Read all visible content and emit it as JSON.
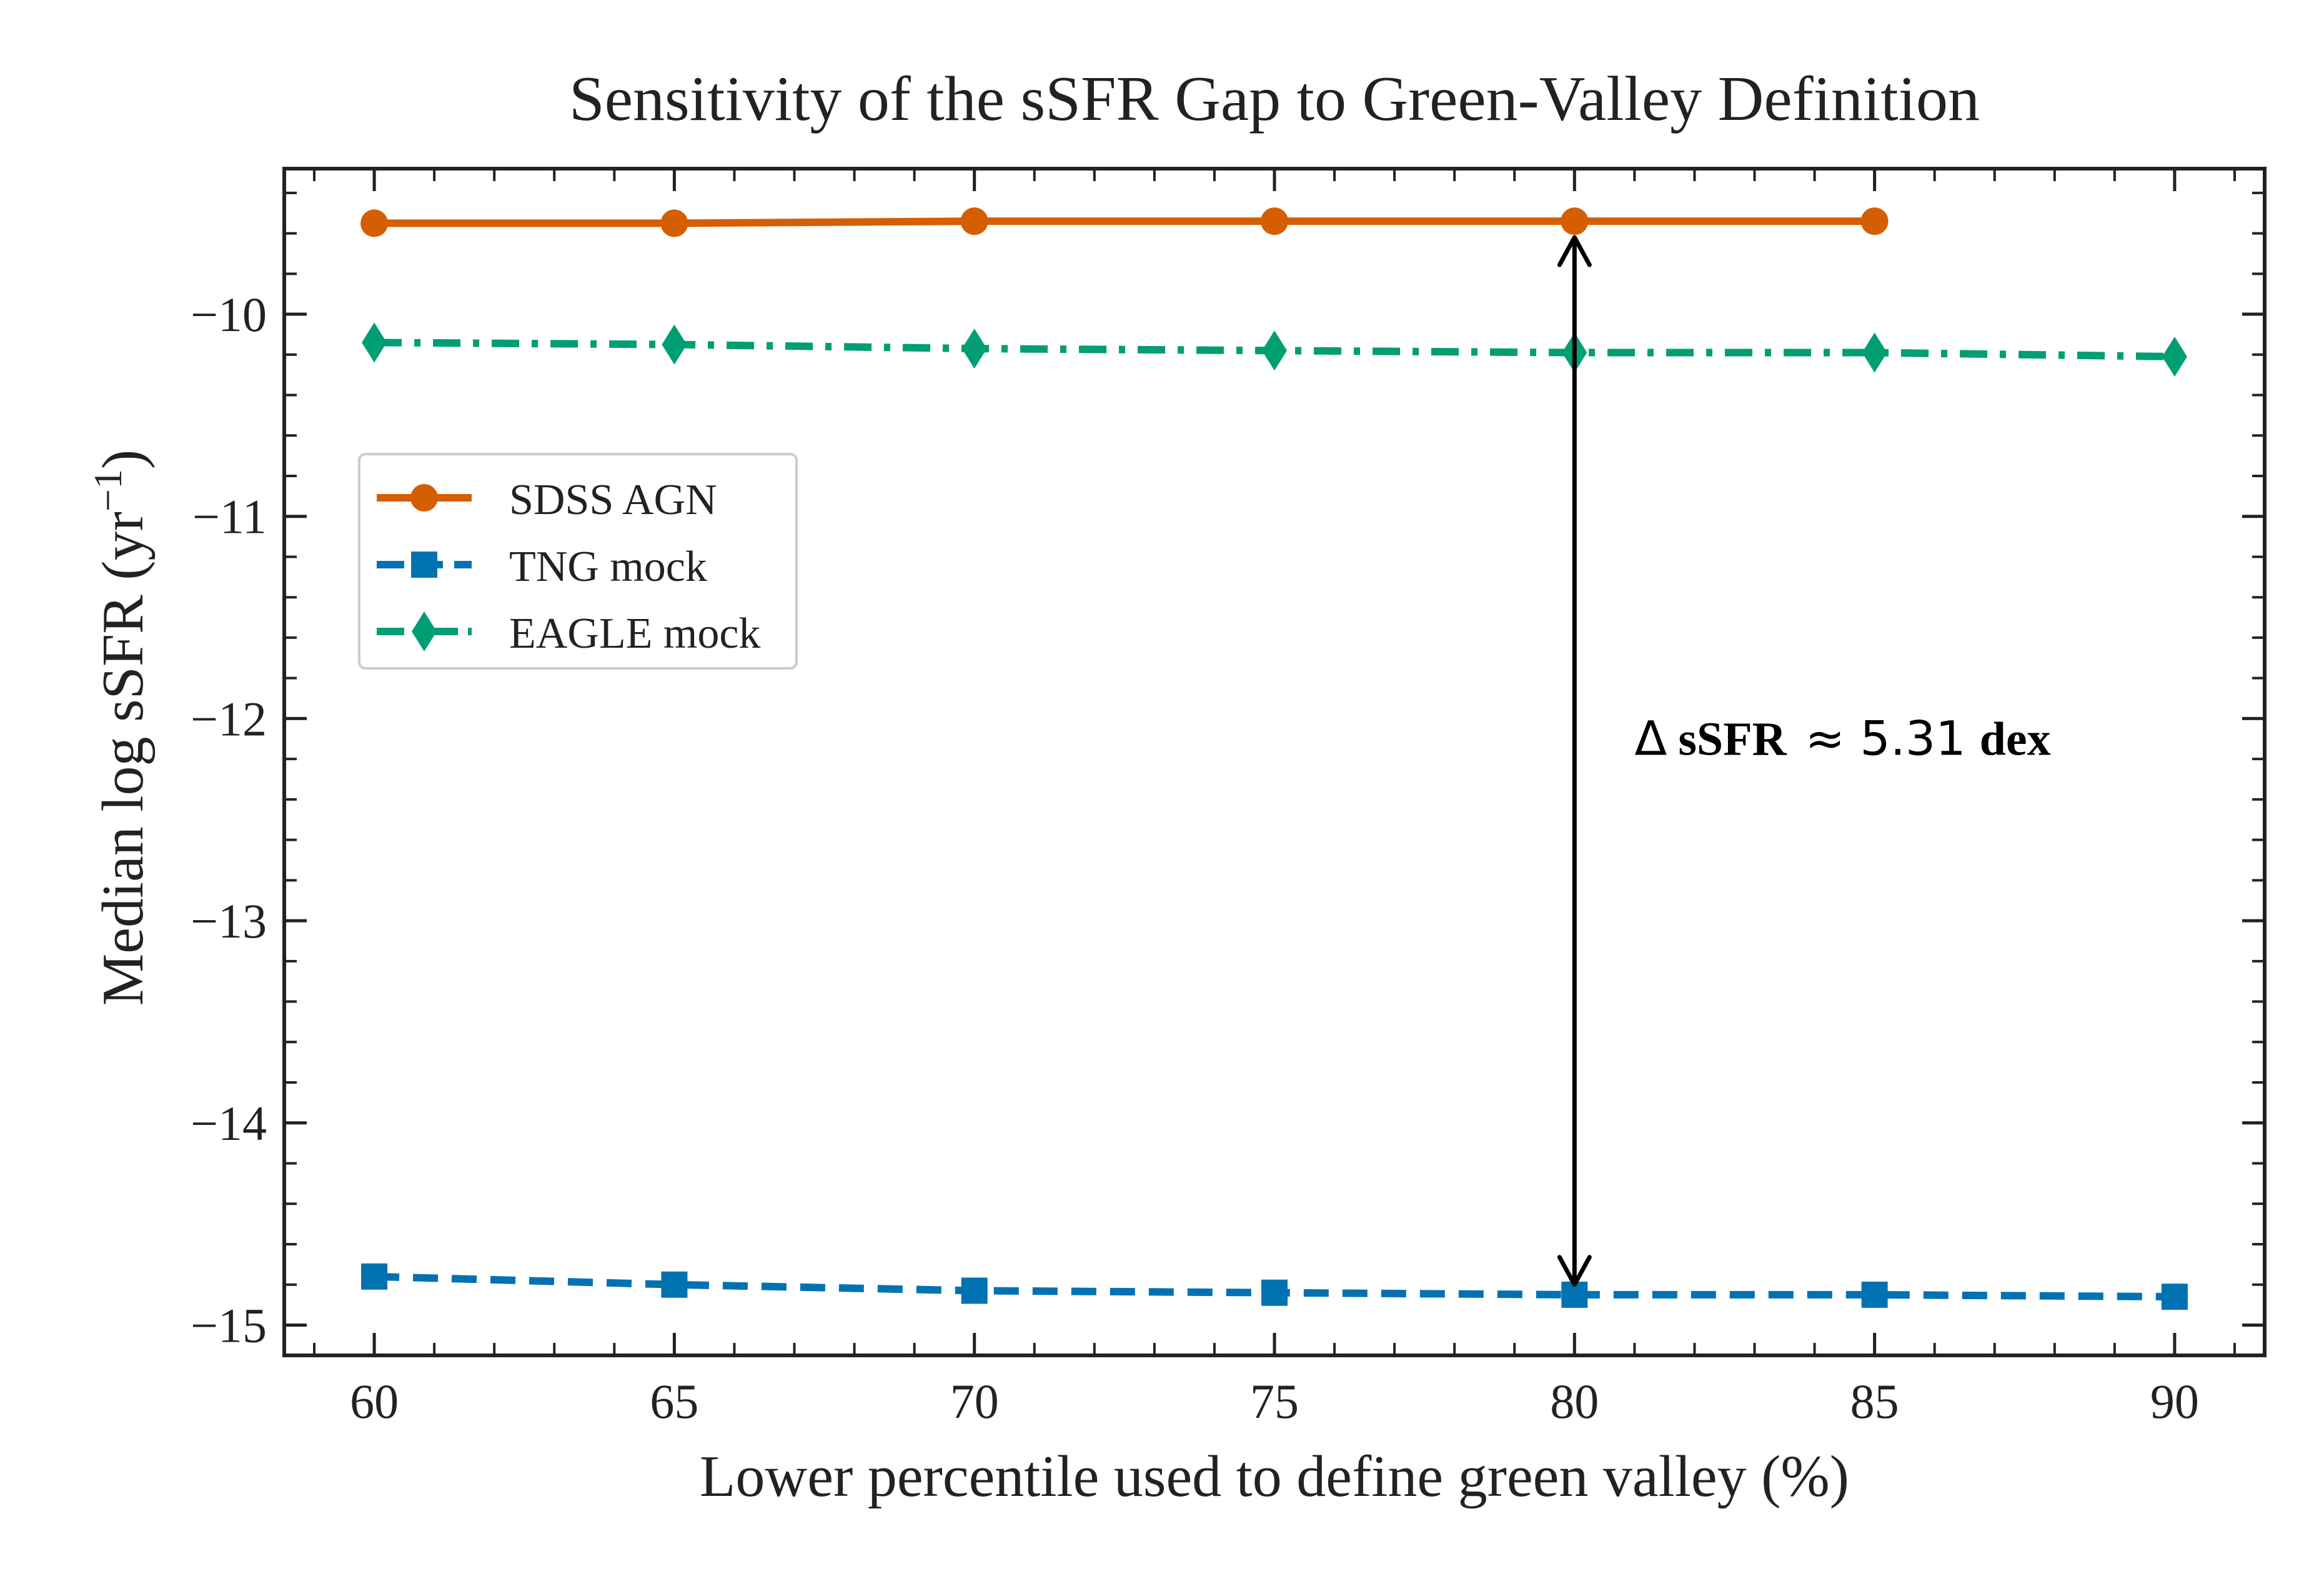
{
  "chart_data": {
    "type": "line",
    "title": "Sensitivity of the sSFR Gap to Green-Valley Definition",
    "xlabel": "Lower percentile used to define green valley (%)",
    "ylabel_main": "Median log  sSFR (yr",
    "ylabel_sup": "−1",
    "ylabel_close": ")",
    "xlim": [
      58.5,
      91.5
    ],
    "ylim": [
      -15.15,
      -9.28
    ],
    "xticks": [
      60,
      65,
      70,
      75,
      80,
      85,
      90
    ],
    "yticks": [
      -10,
      -11,
      -12,
      -13,
      -14,
      -15
    ],
    "xtick_labels": [
      "60",
      "65",
      "70",
      "75",
      "80",
      "85",
      "90"
    ],
    "ytick_labels": [
      "−10",
      "−11",
      "−12",
      "−13",
      "−14",
      "−15"
    ],
    "grid": false,
    "legend_position": "upper-left",
    "series": [
      {
        "name": "SDSS AGN",
        "color": "#d55e00",
        "marker": "circle",
        "linestyle": "solid",
        "x": [
          60,
          65,
          70,
          75,
          80,
          85
        ],
        "y": [
          -9.55,
          -9.55,
          -9.54,
          -9.54,
          -9.54,
          -9.54
        ]
      },
      {
        "name": "TNG mock",
        "color": "#0072b2",
        "marker": "square",
        "linestyle": "dashed",
        "x": [
          60,
          65,
          70,
          75,
          80,
          85,
          90
        ],
        "y": [
          -14.76,
          -14.8,
          -14.83,
          -14.84,
          -14.85,
          -14.85,
          -14.86
        ]
      },
      {
        "name": "EAGLE mock",
        "color": "#009e73",
        "marker": "diamond",
        "linestyle": "dashdot",
        "x": [
          60,
          65,
          70,
          75,
          80,
          85,
          90
        ],
        "y": [
          -10.14,
          -10.15,
          -10.17,
          -10.18,
          -10.19,
          -10.19,
          -10.21
        ]
      }
    ],
    "annotation": {
      "type": "double-arrow",
      "x": 80,
      "y_top": -9.62,
      "y_bottom": -14.8,
      "label_delta": "Δ",
      "label_bold": "sSFR",
      "label_approx": "≈ 5.31",
      "label_unit": "dex",
      "label_x": 81,
      "label_y": -12.18
    }
  }
}
